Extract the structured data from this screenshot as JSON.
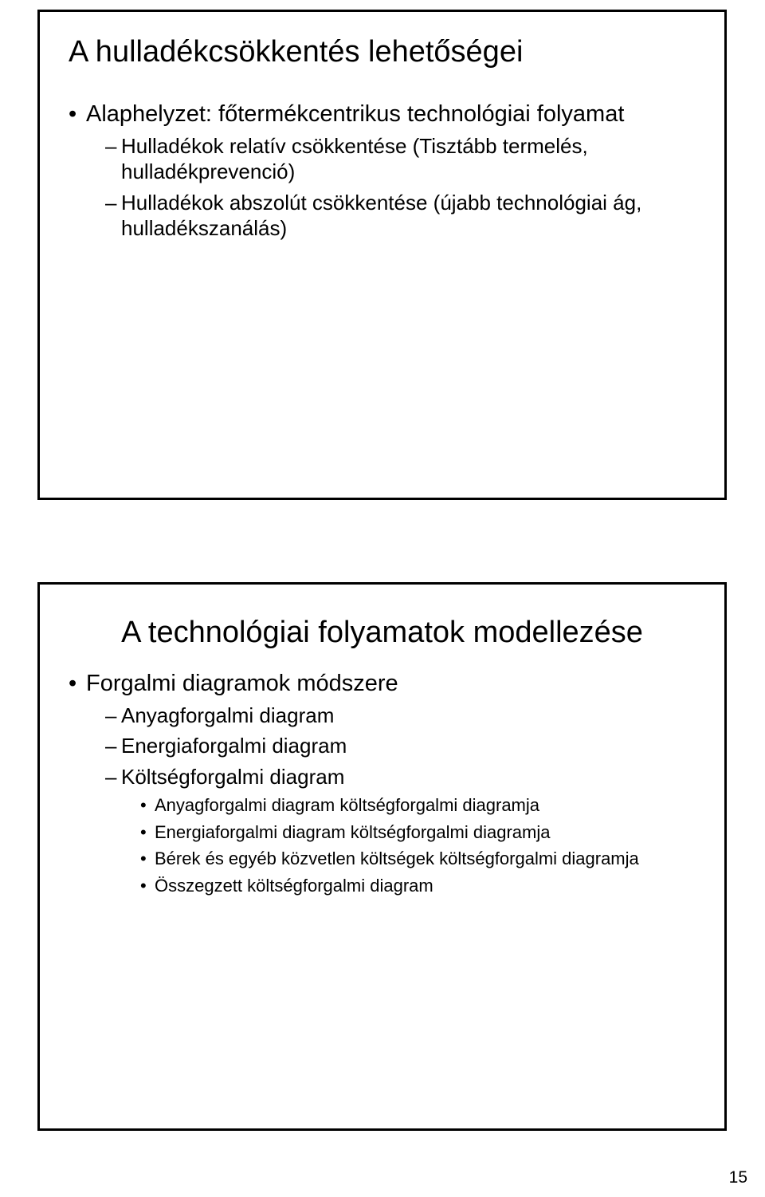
{
  "pageNumber": "15",
  "colors": {
    "background": "#ffffff",
    "text": "#000000",
    "border": "#000000"
  },
  "slide1": {
    "title": "A hulladékcsökkentés lehetőségei",
    "bullets": [
      {
        "text": "Alaphelyzet: főtermékcentrikus technológiai folyamat",
        "children": [
          {
            "text": "Hulladékok relatív csökkentése (Tisztább termelés, hulladékprevenció)"
          },
          {
            "text": "Hulladékok abszolút csökkentése (újabb technológiai ág, hulladékszanálás)"
          }
        ]
      }
    ]
  },
  "slide2": {
    "title": "A technológiai folyamatok modellezése",
    "bullets": [
      {
        "text": "Forgalmi diagramok módszere",
        "children": [
          {
            "text": "Anyagforgalmi diagram"
          },
          {
            "text": "Energiaforgalmi diagram"
          },
          {
            "text": "Költségforgalmi diagram",
            "children": [
              {
                "text": "Anyagforgalmi diagram költségforgalmi diagramja"
              },
              {
                "text": "Energiaforgalmi diagram költségforgalmi diagramja"
              },
              {
                "text": "Bérek és egyéb közvetlen költségek költségforgalmi diagramja"
              },
              {
                "text": "Összegzett költségforgalmi diagram"
              }
            ]
          }
        ]
      }
    ]
  }
}
